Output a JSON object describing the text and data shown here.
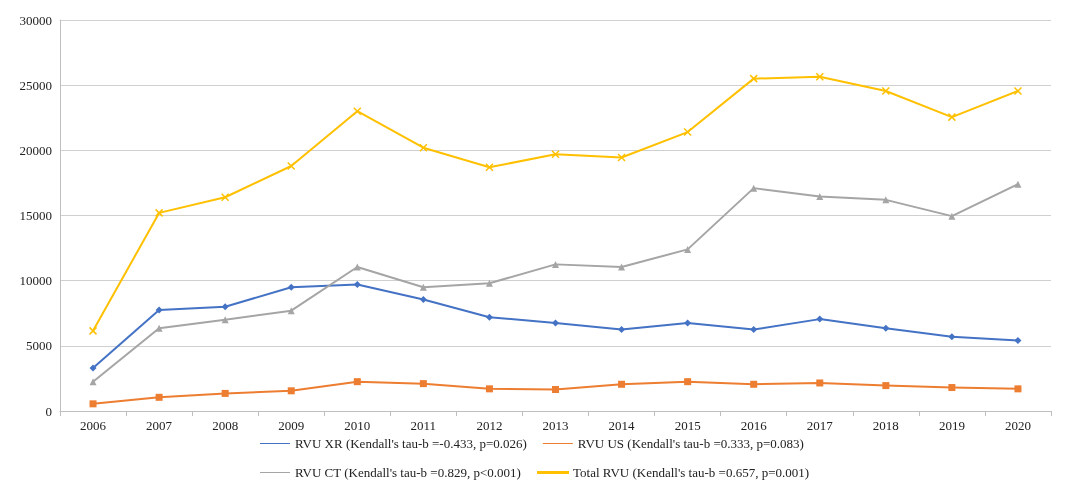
{
  "chart_data": {
    "type": "line",
    "categories": [
      "2006",
      "2007",
      "2008",
      "2009",
      "2010",
      "2011",
      "2012",
      "2013",
      "2014",
      "2015",
      "2016",
      "2017",
      "2018",
      "2019",
      "2020"
    ],
    "series": [
      {
        "name": "RVU XR (Kendall's tau-b =-0.433, p=0.026)",
        "color": "#4472c4",
        "marker": "diamond",
        "values": [
          3300,
          7750,
          8000,
          9500,
          9700,
          8550,
          7200,
          6750,
          6250,
          6750,
          6250,
          7050,
          6350,
          5700,
          5400
        ]
      },
      {
        "name": "RVU US (Kendall's tau-b =0.333, p=0.083)",
        "color": "#ed7d31",
        "marker": "square",
        "values": [
          550,
          1050,
          1350,
          1550,
          2250,
          2100,
          1700,
          1650,
          2050,
          2250,
          2050,
          2150,
          1950,
          1800,
          1700
        ]
      },
      {
        "name": "RVU CT (Kendall's tau-b =0.829, p<0.001)",
        "color": "#a5a5a5",
        "marker": "triangle",
        "values": [
          2250,
          6350,
          7000,
          7700,
          11050,
          9500,
          9800,
          11250,
          11050,
          12400,
          17100,
          16450,
          16200,
          14950,
          17400
        ]
      },
      {
        "name": "Total RVU (Kendall's tau-b =0.657, p=0.001)",
        "color": "#ffc000",
        "marker": "cross",
        "values": [
          6150,
          15200,
          16400,
          18800,
          23000,
          20200,
          18700,
          19700,
          19450,
          21400,
          25500,
          25650,
          24550,
          22550,
          24550
        ]
      }
    ],
    "ylim": [
      0,
      30000
    ],
    "yticks": [
      0,
      5000,
      10000,
      15000,
      20000,
      25000,
      30000
    ],
    "grid": "y",
    "legend": "bottom"
  }
}
